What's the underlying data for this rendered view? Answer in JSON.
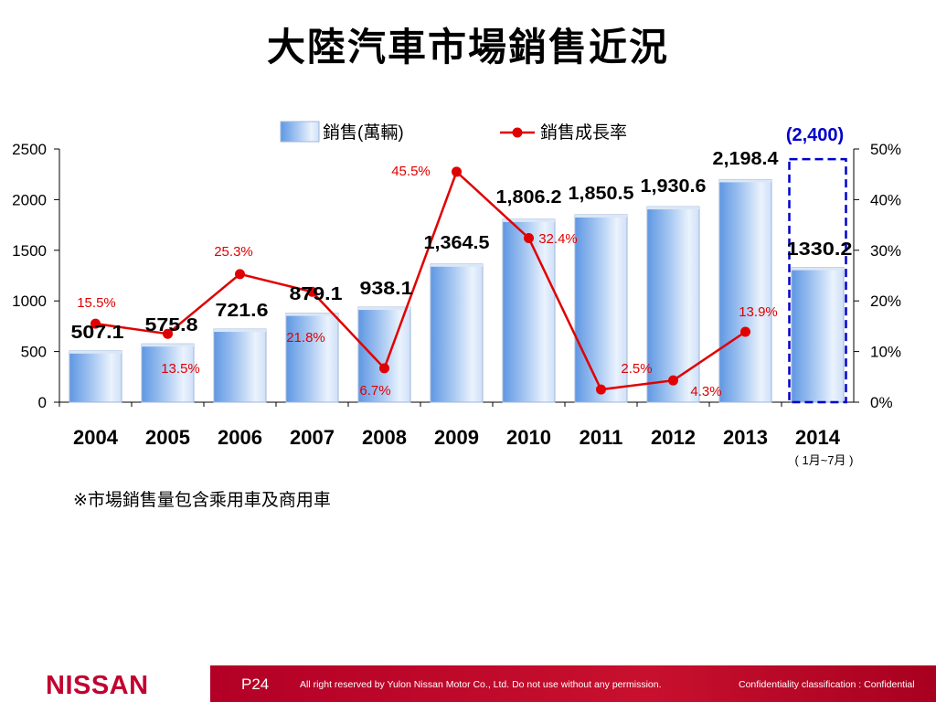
{
  "slide": {
    "title": "大陸汽車市場銷售近況",
    "footnote": "※市場銷售量包含乘用車及商用車"
  },
  "chart_data": {
    "type": "bar",
    "categories": [
      "2004",
      "2005",
      "2006",
      "2007",
      "2008",
      "2009",
      "2010",
      "2011",
      "2012",
      "2013",
      "2014"
    ],
    "category_subnote": {
      "2014": "( 1月~7月 )"
    },
    "ylim": [
      0,
      2500
    ],
    "yticks": [
      "0",
      "500",
      "1000",
      "1500",
      "2000",
      "2500"
    ],
    "y2lim": [
      0,
      0.5
    ],
    "y2ticks": [
      "0%",
      "10%",
      "20%",
      "30%",
      "40%",
      "50%"
    ],
    "grid": false,
    "legend_position": "top",
    "series": [
      {
        "name": "銷售(萬輛)",
        "type": "bar",
        "values": [
          507.1,
          575.8,
          721.6,
          879.1,
          938.1,
          1364.5,
          1806.2,
          1850.5,
          1930.6,
          2198.4,
          1330.2
        ],
        "labels": [
          "507.1",
          "575.8",
          "721.6",
          "879.1",
          "938.1",
          "1,364.5",
          "1,806.2",
          "1,850.5",
          "1,930.6",
          "2,198.4",
          "1330.2"
        ]
      },
      {
        "name": "銷售成長率",
        "type": "line",
        "axis": "secondary",
        "x": [
          "2004",
          "2005",
          "2006",
          "2007",
          "2008",
          "2009",
          "2010",
          "2011",
          "2012",
          "2013"
        ],
        "values": [
          0.155,
          0.135,
          0.253,
          0.218,
          0.067,
          0.455,
          0.324,
          0.025,
          0.043,
          0.139
        ],
        "labels": [
          "15.5%",
          "13.5%",
          "25.3%",
          "21.8%",
          "6.7%",
          "45.5%",
          "32.4%",
          "2.5%",
          "4.3%",
          "13.9%"
        ],
        "color": "#e00000"
      }
    ],
    "annotations": [
      {
        "category": "2014",
        "text": "(2,400)",
        "value": 2400,
        "style": "dashed-box",
        "color": "#0000cc"
      }
    ]
  },
  "footer": {
    "logo": "NISSAN",
    "page": "P24",
    "copyright": "All right reserved by Yulon Nissan Motor Co., Ltd. Do not use without any permission.",
    "confidentiality": "Confidentiality classification : Confidential"
  }
}
